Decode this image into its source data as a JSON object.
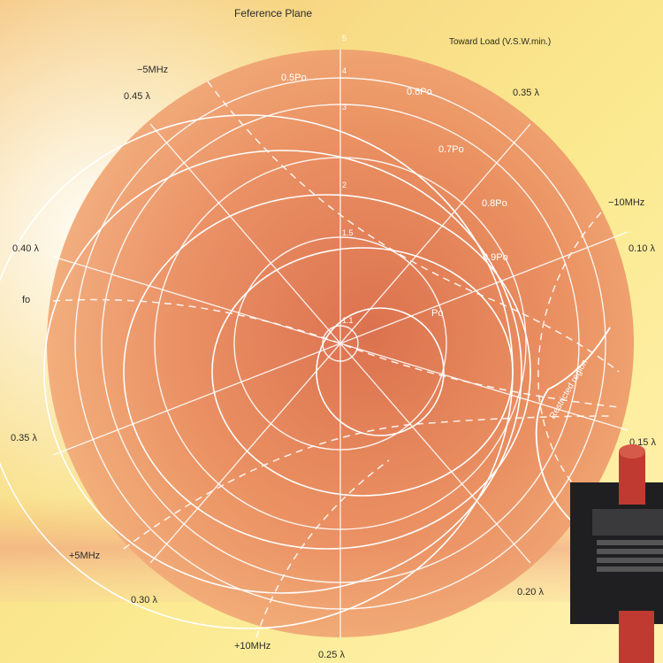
{
  "header": {
    "reference_plane": "Feference Plane",
    "toward_load": "Toward Load (V.S.W.min.)"
  },
  "wavelength_labels": [
    "0.45 λ",
    "0.35 λ",
    "0.40 λ",
    "0.10 λ",
    "0.35 λ",
    "0.15 λ",
    "0.30 λ",
    "0.20 λ",
    "0.25 λ"
  ],
  "frequency_labels": [
    "−5MHz",
    "−10MHz",
    "+5MHz",
    "+10MHz",
    "fo"
  ],
  "power_labels": [
    "0.5Po",
    "0.6Po",
    "0.7Po",
    "0.8Po",
    "0.9Po",
    "Po"
  ],
  "vswr_ticks": [
    "5",
    "4",
    "3",
    "2",
    "1.5",
    "1.1"
  ],
  "restricted_region": "Restricted region",
  "colors": {
    "disc_center": "#d9694a",
    "disc_edge": "#f0a070",
    "grid_line": "#ffffff",
    "label_text": "#2b2b2b",
    "background": "#f8dc86"
  }
}
